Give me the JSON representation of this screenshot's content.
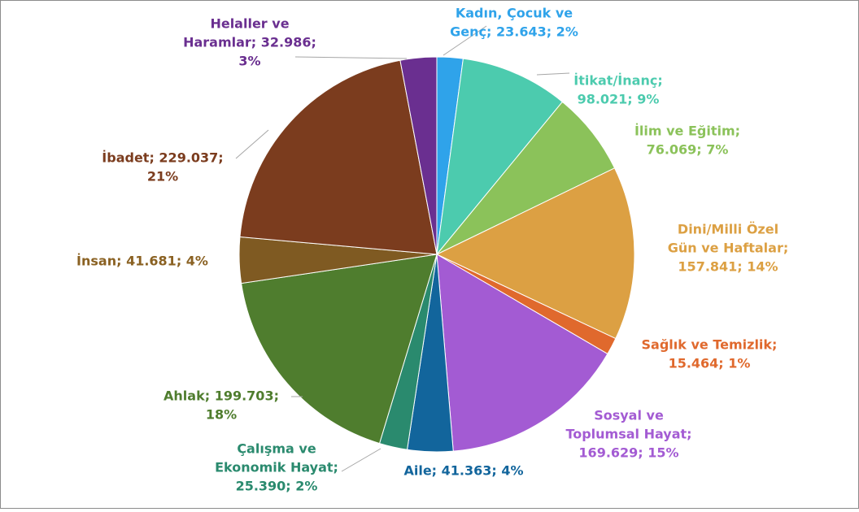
{
  "chart_data": {
    "type": "pie",
    "values": [
      23643,
      98021,
      76069,
      157841,
      15464,
      169629,
      41363,
      25390,
      199703,
      41681,
      229037,
      32986
    ],
    "value_labels": [
      [
        "Kadın, Çocuk ve",
        "Genç; 23.643; 2%"
      ],
      [
        "İtikat/İnanç;",
        "98.021; 9%"
      ],
      [
        "İlim ve Eğitim;",
        "76.069; 7%"
      ],
      [
        "Dini/Milli Özel",
        "Gün ve Haftalar;",
        "157.841; 14%"
      ],
      [
        "Sağlık ve Temizlik;",
        "15.464; 1%"
      ],
      [
        "Sosyal ve",
        "Toplumsal Hayat;",
        "169.629; 15%"
      ],
      [
        "Aile; 41.363; 4%"
      ],
      [
        "Çalışma ve",
        "Ekonomik Hayat;",
        "25.390; 2%"
      ],
      [
        "Ahlak; 199.703;",
        "18%"
      ],
      [
        "İnsan; 41.681; 4%"
      ],
      [
        "İbadet; 229.037;",
        "21%"
      ],
      [
        "Helaller ve",
        "Haramlar; 32.986;",
        "3%"
      ]
    ],
    "colors": [
      "#2fa3ea",
      "#4ccbae",
      "#8bc25a",
      "#dca043",
      "#e0692d",
      "#a35bd3",
      "#12659c",
      "#2a8a6e",
      "#4f7d2e",
      "#7f5a22",
      "#7b3c1e",
      "#6a2f90"
    ],
    "label_colors": [
      "#2fa3ea",
      "#4ccbae",
      "#8bc25a",
      "#dca043",
      "#e0692d",
      "#a35bd3",
      "#12659c",
      "#2a8a6e",
      "#4f7d2e",
      "#8a6122",
      "#7b3c1e",
      "#6a2f90"
    ]
  }
}
